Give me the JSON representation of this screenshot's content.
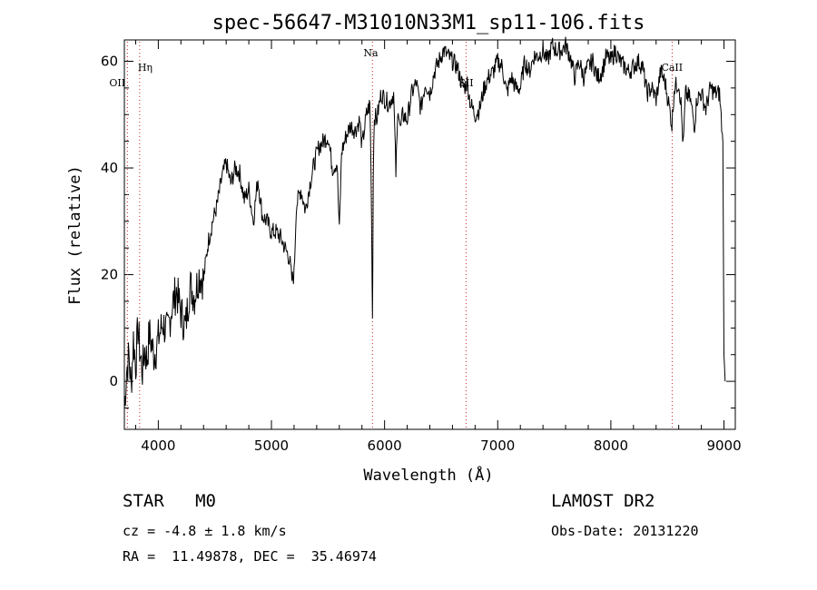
{
  "chart_data": {
    "type": "line",
    "title": "spec-56647-M31010N33M1_sp11-106.fits",
    "xlabel": "Wavelength (Å)",
    "ylabel": "Flux (relative)",
    "xlim": [
      3700,
      9100
    ],
    "ylim": [
      -9,
      64
    ],
    "xticks": [
      "4000",
      "5000",
      "6000",
      "7000",
      "8000",
      "9000"
    ],
    "yticks": [
      "0",
      "20",
      "40",
      "60"
    ],
    "grid": false,
    "series": [
      {
        "x": [
          3700,
          3720,
          3740,
          3760,
          3780,
          3800,
          3820,
          3840,
          3860,
          3880,
          3900,
          3920,
          3940,
          3960,
          3980,
          4000,
          4040,
          4080,
          4120,
          4160,
          4200,
          4240,
          4280,
          4320,
          4360,
          4400,
          4440,
          4480,
          4520,
          4560,
          4600,
          4640,
          4680,
          4720,
          4760,
          4800,
          4840,
          4880,
          4920,
          4960,
          5000,
          5040,
          5080,
          5120,
          5160,
          5180,
          5200,
          5220,
          5260,
          5300,
          5340,
          5380,
          5420,
          5460,
          5500,
          5540,
          5580,
          5600,
          5620,
          5660,
          5700,
          5740,
          5780,
          5800,
          5840,
          5870,
          5880,
          5890,
          5893,
          5896,
          5900,
          5910,
          5930,
          5970,
          6000,
          6040,
          6080,
          6100,
          6120,
          6140,
          6160,
          6200,
          6240,
          6280,
          6320,
          6360,
          6400,
          6440,
          6480,
          6520,
          6560,
          6600,
          6640,
          6680,
          6700,
          6730,
          6760,
          6800,
          6840,
          6880,
          6920,
          6960,
          7000,
          7040,
          7080,
          7120,
          7160,
          7200,
          7240,
          7280,
          7320,
          7360,
          7400,
          7440,
          7480,
          7520,
          7560,
          7600,
          7640,
          7680,
          7720,
          7760,
          7800,
          7840,
          7880,
          7920,
          7960,
          8000,
          8040,
          8080,
          8120,
          8160,
          8200,
          8240,
          8280,
          8320,
          8360,
          8400,
          8440,
          8480,
          8520,
          8540,
          8560,
          8600,
          8620,
          8640,
          8660,
          8700,
          8740,
          8760,
          8800,
          8840,
          8880,
          8920,
          8960,
          8990,
          9000,
          9010
        ],
        "y": [
          -5,
          2,
          5,
          -1,
          8,
          3,
          10,
          5,
          2,
          6,
          4,
          9,
          7,
          5,
          6,
          8,
          11,
          9,
          14,
          17,
          13,
          10,
          18,
          16,
          20,
          19,
          26,
          30,
          33,
          38,
          41,
          37,
          40,
          39,
          34,
          36,
          30,
          38,
          31,
          30,
          28,
          28,
          27,
          25,
          23,
          19,
          20,
          33,
          36,
          32,
          37,
          41,
          44,
          45,
          46,
          40,
          41,
          28,
          43,
          46,
          48,
          47,
          49,
          44,
          50,
          52,
          40,
          20,
          12,
          22,
          40,
          50,
          49,
          54,
          53,
          52,
          54,
          39,
          52,
          47,
          50,
          49,
          54,
          56,
          51,
          56,
          54,
          58,
          60,
          62,
          61,
          60,
          59,
          56,
          55,
          56,
          52,
          50,
          51,
          55,
          57,
          58,
          60,
          59,
          54,
          57,
          55,
          55,
          60,
          58,
          61,
          61,
          62,
          60,
          63,
          62,
          62,
          63,
          61,
          57,
          60,
          57,
          59,
          60,
          57,
          58,
          61,
          60,
          62,
          60,
          59,
          58,
          59,
          60,
          59,
          54,
          55,
          53,
          58,
          56,
          51,
          48,
          55,
          56,
          52,
          44,
          54,
          53,
          48,
          53,
          54,
          51,
          55,
          54,
          54,
          45,
          5,
          0
        ]
      }
    ],
    "annotations": [
      {
        "label": "Hη",
        "x": 3835
      },
      {
        "label": "OII",
        "x": 3727
      },
      {
        "label": "Na",
        "x": 5893
      },
      {
        "label": "SII",
        "x": 6720
      },
      {
        "label": "CaII",
        "x": 8542
      }
    ]
  },
  "info": {
    "class": "STAR",
    "subclass": "M0",
    "survey": "LAMOST DR2",
    "cz": "cz = -4.8 ± 1.8 km/s",
    "obs_date": "Obs-Date: 20131220",
    "coords": "RA =  11.49878, DEC =  35.46974"
  }
}
